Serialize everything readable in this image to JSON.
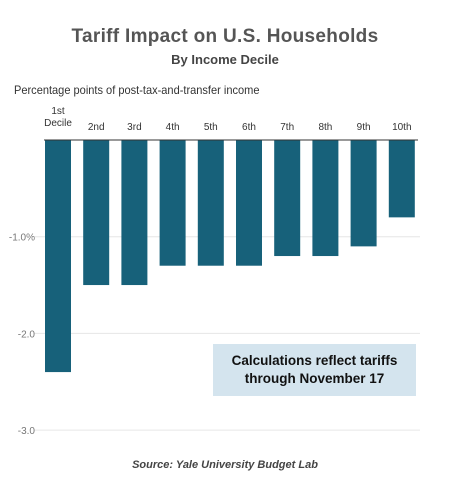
{
  "header": {
    "title": "Tariff Impact on U.S. Households",
    "subtitle": "By Income Decile"
  },
  "note": {
    "line1": "Calculations reflect tariffs",
    "line2": "through November 17"
  },
  "source": "Source: Yale University Budget Lab",
  "chart_data": {
    "type": "bar",
    "title": "Tariff Impact on U.S. Households",
    "subtitle": "By Income Decile",
    "ylabel": "Percentage points of post-tax-and-transfer income",
    "xlabel": "",
    "categories": [
      "1st\nDecile",
      "2nd",
      "3rd",
      "4th",
      "5th",
      "6th",
      "7th",
      "8th",
      "9th",
      "10th"
    ],
    "values": [
      -2.4,
      -1.5,
      -1.5,
      -1.3,
      -1.3,
      -1.3,
      -1.2,
      -1.2,
      -1.1,
      -0.8
    ],
    "ylim": [
      -3.0,
      0
    ],
    "yticks": [
      -1.0,
      -2.0,
      -3.0
    ],
    "ytick_labels": [
      "-1.0%",
      "-2.0",
      "-3.0"
    ],
    "grid": true,
    "x_axis_position": "top",
    "bar_color": "#17617a"
  }
}
